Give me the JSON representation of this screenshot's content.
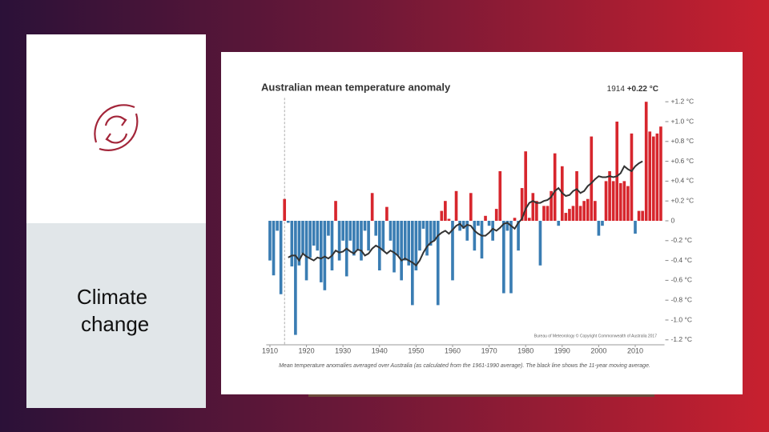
{
  "slide": {
    "label": "Climate change"
  },
  "chart_data": {
    "type": "bar",
    "title": "Australian mean temperature anomaly",
    "annotation": "1914",
    "annotation_value": "+0.22 °C",
    "source": "Bureau of Meteorology © Copyright Commonwealth of Australia 2017",
    "caption": "Mean temperature anomalies averaged over Australia (as calculated from the 1961-1990 average). The black line shows the 11-year moving average.",
    "x": [
      1910,
      1911,
      1912,
      1913,
      1914,
      1915,
      1916,
      1917,
      1918,
      1919,
      1920,
      1921,
      1922,
      1923,
      1924,
      1925,
      1926,
      1927,
      1928,
      1929,
      1930,
      1931,
      1932,
      1933,
      1934,
      1935,
      1936,
      1937,
      1938,
      1939,
      1940,
      1941,
      1942,
      1943,
      1944,
      1945,
      1946,
      1947,
      1948,
      1949,
      1950,
      1951,
      1952,
      1953,
      1954,
      1955,
      1956,
      1957,
      1958,
      1959,
      1960,
      1961,
      1962,
      1963,
      1964,
      1965,
      1966,
      1967,
      1968,
      1969,
      1970,
      1971,
      1972,
      1973,
      1974,
      1975,
      1976,
      1977,
      1978,
      1979,
      1980,
      1981,
      1982,
      1983,
      1984,
      1985,
      1986,
      1987,
      1988,
      1989,
      1990,
      1991,
      1992,
      1993,
      1994,
      1995,
      1996,
      1997,
      1998,
      1999,
      2000,
      2001,
      2002,
      2003,
      2004,
      2005,
      2006,
      2007,
      2008,
      2009,
      2010,
      2011,
      2012,
      2013,
      2014,
      2015,
      2016,
      2017
    ],
    "values": [
      -0.4,
      -0.55,
      -0.1,
      -0.74,
      0.22,
      -0.02,
      -0.46,
      -1.15,
      -0.45,
      -0.33,
      -0.6,
      -0.37,
      -0.25,
      -0.3,
      -0.62,
      -0.7,
      -0.15,
      -0.5,
      0.2,
      -0.4,
      -0.2,
      -0.56,
      -0.2,
      -0.35,
      -0.3,
      -0.4,
      -0.1,
      -0.3,
      0.28,
      -0.15,
      -0.5,
      -0.3,
      0.14,
      -0.2,
      -0.52,
      -0.35,
      -0.6,
      -0.4,
      -0.45,
      -0.85,
      -0.5,
      -0.3,
      -0.08,
      -0.35,
      -0.25,
      -0.2,
      -0.85,
      0.1,
      0.2,
      0.02,
      -0.6,
      0.3,
      -0.1,
      -0.08,
      -0.2,
      0.28,
      -0.3,
      -0.05,
      -0.38,
      0.05,
      -0.05,
      -0.2,
      0.12,
      0.5,
      -0.73,
      -0.1,
      -0.73,
      0.03,
      -0.3,
      0.33,
      0.7,
      0.03,
      0.28,
      0.2,
      -0.45,
      0.15,
      0.15,
      0.3,
      0.68,
      -0.05,
      0.55,
      0.08,
      0.12,
      0.15,
      0.5,
      0.15,
      0.2,
      0.22,
      0.85,
      0.2,
      -0.15,
      -0.05,
      0.4,
      0.5,
      0.4,
      1.0,
      0.38,
      0.4,
      0.35,
      0.88,
      -0.13,
      0.1,
      0.1,
      1.2,
      0.9,
      0.85,
      0.88,
      0.95
    ],
    "moving_average": [
      null,
      null,
      null,
      null,
      null,
      -0.37,
      -0.35,
      -0.35,
      -0.4,
      -0.33,
      -0.36,
      -0.38,
      -0.4,
      -0.37,
      -0.38,
      -0.36,
      -0.38,
      -0.35,
      -0.3,
      -0.32,
      -0.31,
      -0.28,
      -0.31,
      -0.33,
      -0.29,
      -0.3,
      -0.35,
      -0.33,
      -0.28,
      -0.25,
      -0.27,
      -0.3,
      -0.33,
      -0.3,
      -0.32,
      -0.35,
      -0.4,
      -0.38,
      -0.4,
      -0.42,
      -0.45,
      -0.4,
      -0.32,
      -0.26,
      -0.22,
      -0.2,
      -0.15,
      -0.12,
      -0.1,
      -0.13,
      -0.09,
      -0.05,
      -0.03,
      -0.07,
      -0.04,
      -0.05,
      -0.1,
      -0.13,
      -0.15,
      -0.15,
      -0.12,
      -0.08,
      -0.1,
      -0.07,
      -0.03,
      -0.02,
      -0.05,
      -0.08,
      -0.02,
      0.02,
      0.12,
      0.18,
      0.2,
      0.18,
      0.18,
      0.2,
      0.21,
      0.24,
      0.3,
      0.33,
      0.28,
      0.25,
      0.26,
      0.3,
      0.32,
      0.28,
      0.3,
      0.35,
      0.38,
      0.42,
      0.45,
      0.44,
      0.44,
      0.45,
      0.44,
      0.45,
      0.48,
      0.55,
      0.52,
      0.5,
      0.55,
      0.58,
      0.6,
      null,
      null,
      null,
      null,
      null
    ],
    "colors": {
      "positive": "#d7262d",
      "negative": "#3a7db3",
      "line": "#333333"
    },
    "xlim": [
      1909,
      2018
    ],
    "xticks": [
      1910,
      1920,
      1930,
      1940,
      1950,
      1960,
      1970,
      1980,
      1990,
      2000,
      2010
    ],
    "ylim": [
      -1.2,
      1.2
    ],
    "yticks": [
      {
        "value": -1.2,
        "label": "-1.2 °C"
      },
      {
        "value": -1.0,
        "label": "-1.0 °C"
      },
      {
        "value": -0.8,
        "label": "-0.8 °C"
      },
      {
        "value": -0.6,
        "label": "-0.6 °C"
      },
      {
        "value": -0.4,
        "label": "-0.4 °C"
      },
      {
        "value": -0.2,
        "label": "-0.2 °C"
      },
      0,
      {
        "value": 0.2,
        "label": "+0.2 °C"
      },
      {
        "value": 0.4,
        "label": "+0.4 °C"
      },
      {
        "value": 0.6,
        "label": "+0.6 °C"
      },
      {
        "value": 0.8,
        "label": "+0.8 °C"
      },
      {
        "value": 1.0,
        "label": "+1.0 °C"
      },
      {
        "value": 1.2,
        "label": "+1.2 °C"
      }
    ]
  }
}
